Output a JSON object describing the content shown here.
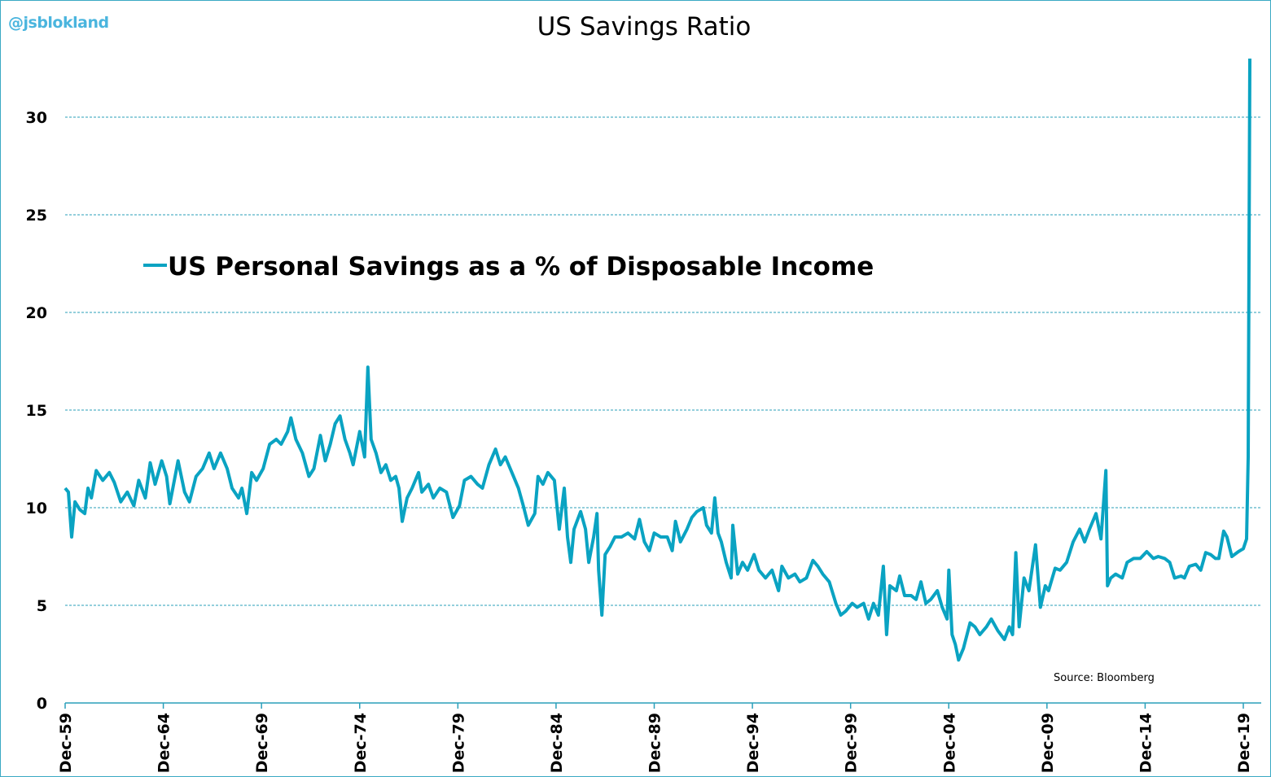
{
  "watermark": "@jsblokland",
  "chart_data": {
    "type": "line",
    "title": "US Savings Ratio",
    "xlabel": "",
    "ylabel": "",
    "ylim": [
      0,
      33
    ],
    "yticks": [
      0,
      5,
      10,
      15,
      20,
      25,
      30
    ],
    "xtick_labels": [
      "Dec-59",
      "Dec-64",
      "Dec-69",
      "Dec-74",
      "Dec-79",
      "Dec-84",
      "Dec-89",
      "Dec-94",
      "Dec-99",
      "Dec-04",
      "Dec-09",
      "Dec-14",
      "Dec-19"
    ],
    "grid": "horizontal dashed",
    "legend_placement": "upper-left (inside plot)",
    "source": "Source:  Bloomberg",
    "color": "#0aa3c2",
    "series": [
      {
        "name": "US Personal Savings as a % of Disposable Income",
        "points": [
          [
            "1959-12",
            11.0
          ],
          [
            "1960-02",
            10.8
          ],
          [
            "1960-04",
            8.5
          ],
          [
            "1960-06",
            10.3
          ],
          [
            "1960-09",
            9.9
          ],
          [
            "1960-12",
            9.7
          ],
          [
            "1961-02",
            11.0
          ],
          [
            "1961-04",
            10.5
          ],
          [
            "1961-07",
            11.9
          ],
          [
            "1961-11",
            11.4
          ],
          [
            "1962-03",
            11.8
          ],
          [
            "1962-06",
            11.3
          ],
          [
            "1962-10",
            10.3
          ],
          [
            "1963-02",
            10.8
          ],
          [
            "1963-06",
            10.1
          ],
          [
            "1963-09",
            11.4
          ],
          [
            "1964-01",
            10.5
          ],
          [
            "1964-04",
            12.3
          ],
          [
            "1964-07",
            11.2
          ],
          [
            "1964-11",
            12.4
          ],
          [
            "1965-02",
            11.6
          ],
          [
            "1965-04",
            10.2
          ],
          [
            "1965-09",
            12.4
          ],
          [
            "1966-01",
            10.8
          ],
          [
            "1966-04",
            10.3
          ],
          [
            "1966-08",
            11.6
          ],
          [
            "1966-12",
            12.0
          ],
          [
            "1967-04",
            12.8
          ],
          [
            "1967-07",
            12.0
          ],
          [
            "1967-11",
            12.8
          ],
          [
            "1968-03",
            12.0
          ],
          [
            "1968-06",
            11.0
          ],
          [
            "1968-10",
            10.5
          ],
          [
            "1968-12",
            11.0
          ],
          [
            "1969-03",
            9.7
          ],
          [
            "1969-06",
            11.8
          ],
          [
            "1969-09",
            11.4
          ],
          [
            "1970-01",
            12.0
          ],
          [
            "1970-05",
            13.25
          ],
          [
            "1970-09",
            13.5
          ],
          [
            "1970-12",
            13.25
          ],
          [
            "1971-04",
            13.9
          ],
          [
            "1971-06",
            14.6
          ],
          [
            "1971-09",
            13.5
          ],
          [
            "1972-01",
            12.8
          ],
          [
            "1972-05",
            11.6
          ],
          [
            "1972-08",
            12.0
          ],
          [
            "1972-12",
            13.7
          ],
          [
            "1973-03",
            12.4
          ],
          [
            "1973-06",
            13.25
          ],
          [
            "1973-09",
            14.3
          ],
          [
            "1973-12",
            14.7
          ],
          [
            "1974-03",
            13.5
          ],
          [
            "1974-06",
            12.8
          ],
          [
            "1974-08",
            12.2
          ],
          [
            "1974-12",
            13.9
          ],
          [
            "1975-03",
            12.6
          ],
          [
            "1975-05",
            17.2
          ],
          [
            "1975-07",
            13.5
          ],
          [
            "1975-10",
            12.8
          ],
          [
            "1976-01",
            11.8
          ],
          [
            "1976-04",
            12.2
          ],
          [
            "1976-07",
            11.4
          ],
          [
            "1976-10",
            11.6
          ],
          [
            "1976-12",
            11.0
          ],
          [
            "1977-02",
            9.3
          ],
          [
            "1977-05",
            10.5
          ],
          [
            "1977-08",
            11.0
          ],
          [
            "1977-12",
            11.8
          ],
          [
            "1978-02",
            10.8
          ],
          [
            "1978-06",
            11.2
          ],
          [
            "1978-09",
            10.5
          ],
          [
            "1979-01",
            11.0
          ],
          [
            "1979-05",
            10.8
          ],
          [
            "1979-09",
            9.5
          ],
          [
            "1980-01",
            10.1
          ],
          [
            "1980-04",
            11.4
          ],
          [
            "1980-08",
            11.6
          ],
          [
            "1980-12",
            11.2
          ],
          [
            "1981-03",
            11.0
          ],
          [
            "1981-07",
            12.2
          ],
          [
            "1981-11",
            13.0
          ],
          [
            "1982-02",
            12.2
          ],
          [
            "1982-05",
            12.6
          ],
          [
            "1982-09",
            11.8
          ],
          [
            "1983-01",
            11.0
          ],
          [
            "1983-04",
            10.1
          ],
          [
            "1983-07",
            9.1
          ],
          [
            "1983-11",
            9.7
          ],
          [
            "1984-01",
            11.6
          ],
          [
            "1984-04",
            11.2
          ],
          [
            "1984-07",
            11.8
          ],
          [
            "1984-11",
            11.4
          ],
          [
            "1985-02",
            8.9
          ],
          [
            "1985-05",
            11.0
          ],
          [
            "1985-07",
            8.5
          ],
          [
            "1985-09",
            7.2
          ],
          [
            "1985-11",
            8.9
          ],
          [
            "1986-03",
            9.8
          ],
          [
            "1986-06",
            8.9
          ],
          [
            "1986-08",
            7.2
          ],
          [
            "1986-11",
            8.5
          ],
          [
            "1987-01",
            9.7
          ],
          [
            "1987-02",
            6.8
          ],
          [
            "1987-04",
            4.5
          ],
          [
            "1987-06",
            7.6
          ],
          [
            "1987-09",
            8.0
          ],
          [
            "1987-12",
            8.5
          ],
          [
            "1988-04",
            8.5
          ],
          [
            "1988-08",
            8.7
          ],
          [
            "1988-12",
            8.4
          ],
          [
            "1989-03",
            9.4
          ],
          [
            "1989-06",
            8.25
          ],
          [
            "1989-09",
            7.8
          ],
          [
            "1989-12",
            8.7
          ],
          [
            "1990-04",
            8.5
          ],
          [
            "1990-08",
            8.5
          ],
          [
            "1990-11",
            7.8
          ],
          [
            "1991-01",
            9.3
          ],
          [
            "1991-04",
            8.25
          ],
          [
            "1991-08",
            8.9
          ],
          [
            "1991-11",
            9.5
          ],
          [
            "1992-02",
            9.8
          ],
          [
            "1992-06",
            10.0
          ],
          [
            "1992-08",
            9.1
          ],
          [
            "1992-11",
            8.7
          ],
          [
            "1993-01",
            10.5
          ],
          [
            "1993-03",
            8.7
          ],
          [
            "1993-05",
            8.25
          ],
          [
            "1993-08",
            7.2
          ],
          [
            "1993-11",
            6.4
          ],
          [
            "1993-12",
            9.1
          ],
          [
            "1994-03",
            6.6
          ],
          [
            "1994-06",
            7.2
          ],
          [
            "1994-09",
            6.8
          ],
          [
            "1995-01",
            7.6
          ],
          [
            "1995-04",
            6.8
          ],
          [
            "1995-08",
            6.4
          ],
          [
            "1995-12",
            6.8
          ],
          [
            "1996-04",
            5.75
          ],
          [
            "1996-06",
            7.0
          ],
          [
            "1996-10",
            6.4
          ],
          [
            "1997-02",
            6.6
          ],
          [
            "1997-05",
            6.2
          ],
          [
            "1997-09",
            6.4
          ],
          [
            "1998-01",
            7.3
          ],
          [
            "1998-04",
            7.0
          ],
          [
            "1998-07",
            6.6
          ],
          [
            "1998-11",
            6.2
          ],
          [
            "1999-03",
            5.1
          ],
          [
            "1999-06",
            4.5
          ],
          [
            "1999-09",
            4.7
          ],
          [
            "2000-01",
            5.1
          ],
          [
            "2000-04",
            4.9
          ],
          [
            "2000-08",
            5.1
          ],
          [
            "2000-11",
            4.3
          ],
          [
            "2001-02",
            5.1
          ],
          [
            "2001-05",
            4.5
          ],
          [
            "2001-08",
            7.0
          ],
          [
            "2001-10",
            3.5
          ],
          [
            "2001-12",
            6.0
          ],
          [
            "2002-04",
            5.75
          ],
          [
            "2002-06",
            6.5
          ],
          [
            "2002-09",
            5.5
          ],
          [
            "2003-01",
            5.5
          ],
          [
            "2003-04",
            5.3
          ],
          [
            "2003-07",
            6.2
          ],
          [
            "2003-10",
            5.1
          ],
          [
            "2004-01",
            5.3
          ],
          [
            "2004-05",
            5.75
          ],
          [
            "2004-08",
            4.9
          ],
          [
            "2004-11",
            4.3
          ],
          [
            "2004-12",
            6.8
          ],
          [
            "2005-02",
            3.5
          ],
          [
            "2005-04",
            3.0
          ],
          [
            "2005-06",
            2.2
          ],
          [
            "2005-09",
            2.8
          ],
          [
            "2006-01",
            4.1
          ],
          [
            "2006-04",
            3.9
          ],
          [
            "2006-07",
            3.5
          ],
          [
            "2006-11",
            3.9
          ],
          [
            "2007-02",
            4.3
          ],
          [
            "2007-06",
            3.7
          ],
          [
            "2007-10",
            3.25
          ],
          [
            "2008-01",
            3.9
          ],
          [
            "2008-03",
            3.5
          ],
          [
            "2008-05",
            7.7
          ],
          [
            "2008-07",
            3.9
          ],
          [
            "2008-10",
            6.4
          ],
          [
            "2009-01",
            5.75
          ],
          [
            "2009-05",
            8.1
          ],
          [
            "2009-08",
            4.9
          ],
          [
            "2009-11",
            6.0
          ],
          [
            "2010-01",
            5.75
          ],
          [
            "2010-05",
            6.9
          ],
          [
            "2010-08",
            6.8
          ],
          [
            "2010-12",
            7.2
          ],
          [
            "2011-04",
            8.25
          ],
          [
            "2011-08",
            8.9
          ],
          [
            "2011-11",
            8.25
          ],
          [
            "2012-02",
            8.9
          ],
          [
            "2012-06",
            9.7
          ],
          [
            "2012-09",
            8.4
          ],
          [
            "2012-12",
            11.9
          ],
          [
            "2013-01",
            6.0
          ],
          [
            "2013-03",
            6.4
          ],
          [
            "2013-06",
            6.6
          ],
          [
            "2013-10",
            6.4
          ],
          [
            "2014-01",
            7.2
          ],
          [
            "2014-05",
            7.4
          ],
          [
            "2014-09",
            7.4
          ],
          [
            "2015-01",
            7.75
          ],
          [
            "2015-05",
            7.4
          ],
          [
            "2015-08",
            7.5
          ],
          [
            "2015-12",
            7.4
          ],
          [
            "2016-03",
            7.2
          ],
          [
            "2016-06",
            6.4
          ],
          [
            "2016-10",
            6.5
          ],
          [
            "2016-12",
            6.4
          ],
          [
            "2017-03",
            7.0
          ],
          [
            "2017-07",
            7.1
          ],
          [
            "2017-10",
            6.8
          ],
          [
            "2018-01",
            7.7
          ],
          [
            "2018-04",
            7.6
          ],
          [
            "2018-07",
            7.4
          ],
          [
            "2018-09",
            7.4
          ],
          [
            "2018-12",
            8.8
          ],
          [
            "2019-02",
            8.5
          ],
          [
            "2019-05",
            7.5
          ],
          [
            "2019-09",
            7.75
          ],
          [
            "2019-12",
            7.9
          ],
          [
            "2020-02",
            8.4
          ],
          [
            "2020-03",
            12.6
          ],
          [
            "2020-04",
            33.0
          ]
        ]
      }
    ]
  }
}
